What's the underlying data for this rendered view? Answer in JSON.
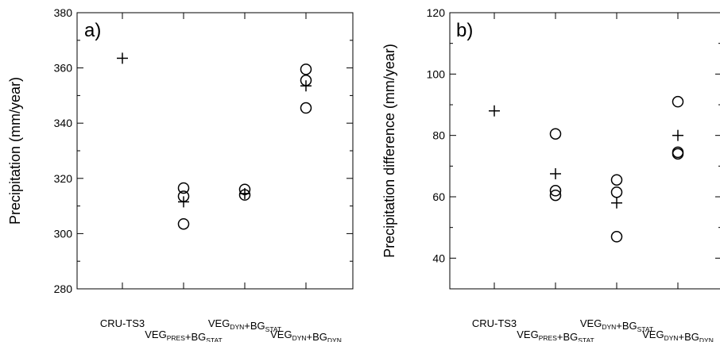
{
  "chart_data": [
    {
      "type": "scatter",
      "panel_label": "a)",
      "ylabel": "Precipitation (mm/year)",
      "ylim": [
        280,
        380
      ],
      "yticks": [
        280,
        300,
        320,
        340,
        360,
        380
      ],
      "categories": [
        {
          "main": "CRU-TS3",
          "parts": []
        },
        {
          "main": "",
          "parts": [
            {
              "t": "VEG",
              "s": "PRES"
            },
            {
              "t": "+BG",
              "s": "STAT"
            }
          ]
        },
        {
          "main": "",
          "parts": [
            {
              "t": "VEG",
              "s": "DYN"
            },
            {
              "t": "+BG",
              "s": "STAT"
            }
          ]
        },
        {
          "main": "",
          "parts": [
            {
              "t": "VEG",
              "s": "DYN"
            },
            {
              "t": "+BG",
              "s": "DYN"
            }
          ]
        }
      ],
      "mean": [
        363.5,
        311.5,
        314.5,
        353.5
      ],
      "members": [
        [],
        [
          316.5,
          313.5,
          303.5
        ],
        [
          316.0,
          314.0
        ],
        [
          359.5,
          355.5,
          345.5
        ]
      ],
      "markers": {
        "mean": "plus",
        "members": "circle"
      },
      "grid": false
    },
    {
      "type": "scatter",
      "panel_label": "b)",
      "ylabel": "Precipitation difference (mm/year)",
      "ylim": [
        30,
        120
      ],
      "yticks": [
        40,
        60,
        80,
        100,
        120
      ],
      "categories": [
        {
          "main": "CRU-TS3",
          "parts": []
        },
        {
          "main": "",
          "parts": [
            {
              "t": "VEG",
              "s": "PRES"
            },
            {
              "t": "+BG",
              "s": "STAT"
            }
          ]
        },
        {
          "main": "",
          "parts": [
            {
              "t": "VEG",
              "s": "DYN"
            },
            {
              "t": "+BG",
              "s": "STAT"
            }
          ]
        },
        {
          "main": "",
          "parts": [
            {
              "t": "VEG",
              "s": "DYN"
            },
            {
              "t": "+BG",
              "s": "DYN"
            }
          ]
        }
      ],
      "mean": [
        88.0,
        67.5,
        58.0,
        80.0
      ],
      "members": [
        [],
        [
          80.5,
          62.0,
          60.5
        ],
        [
          65.5,
          61.5,
          47.0
        ],
        [
          91.0,
          74.5,
          74.0
        ]
      ],
      "markers": {
        "mean": "plus",
        "members": "circle"
      },
      "grid": false
    }
  ]
}
